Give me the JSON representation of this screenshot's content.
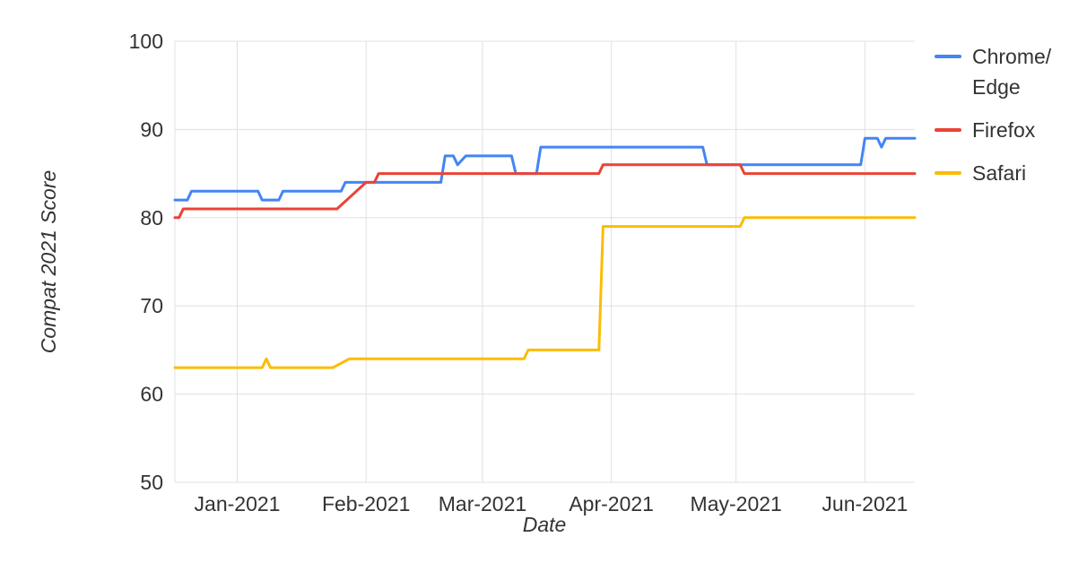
{
  "chart_data": {
    "type": "line",
    "title": "",
    "xlabel": "Date",
    "ylabel": "Compat 2021 Score",
    "ylim": [
      50,
      100
    ],
    "xlim": [
      "2020-12-17",
      "2021-06-13"
    ],
    "yticks": [
      50,
      60,
      70,
      80,
      90,
      100
    ],
    "xticks": [
      {
        "label": "Jan-2021",
        "date": "2021-01-01"
      },
      {
        "label": "Feb-2021",
        "date": "2021-02-01"
      },
      {
        "label": "Mar-2021",
        "date": "2021-03-01"
      },
      {
        "label": "Apr-2021",
        "date": "2021-04-01"
      },
      {
        "label": "May-2021",
        "date": "2021-05-01"
      },
      {
        "label": "Jun-2021",
        "date": "2021-06-01"
      }
    ],
    "grid": true,
    "legend_position": "right",
    "colors": {
      "grid": "#e0e0e0",
      "axis_text": "#333333"
    },
    "series": [
      {
        "name": "Chrome/Edge",
        "id": "chrome-edge",
        "color": "#4285F4",
        "points": [
          [
            "2020-12-17",
            82
          ],
          [
            "2020-12-20",
            82
          ],
          [
            "2020-12-21",
            83
          ],
          [
            "2021-01-06",
            83
          ],
          [
            "2021-01-07",
            82
          ],
          [
            "2021-01-11",
            82
          ],
          [
            "2021-01-12",
            83
          ],
          [
            "2021-01-26",
            83
          ],
          [
            "2021-01-27",
            84
          ],
          [
            "2021-02-19",
            84
          ],
          [
            "2021-02-20",
            87
          ],
          [
            "2021-02-22",
            87
          ],
          [
            "2021-02-23",
            86
          ],
          [
            "2021-02-25",
            87
          ],
          [
            "2021-03-08",
            87
          ],
          [
            "2021-03-09",
            85
          ],
          [
            "2021-03-14",
            85
          ],
          [
            "2021-03-15",
            88
          ],
          [
            "2021-04-23",
            88
          ],
          [
            "2021-04-24",
            86
          ],
          [
            "2021-05-31",
            86
          ],
          [
            "2021-06-01",
            89
          ],
          [
            "2021-06-04",
            89
          ],
          [
            "2021-06-05",
            88
          ],
          [
            "2021-06-06",
            89
          ],
          [
            "2021-06-13",
            89
          ]
        ]
      },
      {
        "name": "Firefox",
        "id": "firefox",
        "color": "#EA4335",
        "points": [
          [
            "2020-12-17",
            80
          ],
          [
            "2020-12-18",
            80
          ],
          [
            "2020-12-19",
            81
          ],
          [
            "2021-01-25",
            81
          ],
          [
            "2021-02-01",
            84
          ],
          [
            "2021-02-03",
            84
          ],
          [
            "2021-02-04",
            85
          ],
          [
            "2021-03-29",
            85
          ],
          [
            "2021-03-30",
            86
          ],
          [
            "2021-05-02",
            86
          ],
          [
            "2021-05-03",
            85
          ],
          [
            "2021-06-13",
            85
          ]
        ]
      },
      {
        "name": "Safari",
        "id": "safari",
        "color": "#FBBC04",
        "points": [
          [
            "2020-12-17",
            63
          ],
          [
            "2021-01-07",
            63
          ],
          [
            "2021-01-08",
            64
          ],
          [
            "2021-01-09",
            63
          ],
          [
            "2021-01-24",
            63
          ],
          [
            "2021-01-28",
            64
          ],
          [
            "2021-03-11",
            64
          ],
          [
            "2021-03-12",
            65
          ],
          [
            "2021-03-29",
            65
          ],
          [
            "2021-03-30",
            79
          ],
          [
            "2021-05-02",
            79
          ],
          [
            "2021-05-03",
            80
          ],
          [
            "2021-06-13",
            80
          ]
        ]
      }
    ],
    "legend": [
      {
        "label": "Chrome/\nEdge",
        "series": "Chrome/Edge"
      },
      {
        "label": "Firefox",
        "series": "Firefox"
      },
      {
        "label": "Safari",
        "series": "Safari"
      }
    ]
  }
}
